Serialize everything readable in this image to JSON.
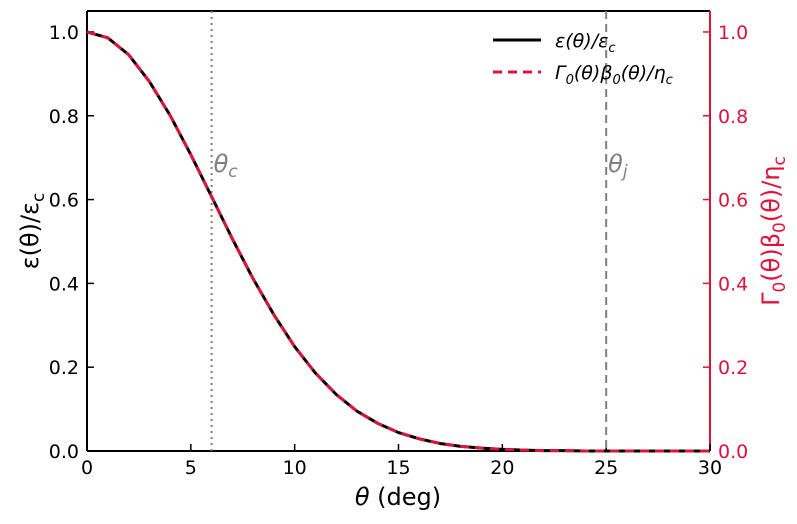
{
  "chart_data": {
    "type": "line",
    "xlabel": "θ (deg)",
    "ylabel_left": "ε(θ)/ε_c",
    "ylabel_right": "Γ0(θ)β0(θ)/η_c",
    "xlim": [
      0,
      30
    ],
    "ylim_left": [
      0,
      1.05
    ],
    "ylim_right": [
      0,
      1.05
    ],
    "x_ticks": [
      "0",
      "5",
      "10",
      "15",
      "20",
      "25",
      "30"
    ],
    "y_ticks_left": [
      "0.0",
      "0.2",
      "0.4",
      "0.6",
      "0.8",
      "1.0"
    ],
    "y_ticks_right": [
      "0.0",
      "0.2",
      "0.4",
      "0.6",
      "0.8",
      "1.0"
    ],
    "grid": false,
    "legend_position": "top-right",
    "series": [
      {
        "name": "ε(θ)/ε_c",
        "style": "solid",
        "color": "#000000",
        "x": [
          0,
          1,
          2,
          3,
          4,
          5,
          6,
          7,
          8,
          9,
          10,
          11,
          12,
          13,
          14,
          15,
          16,
          17,
          18,
          19,
          20,
          21,
          22,
          23,
          24,
          25,
          26,
          27,
          28,
          29,
          30
        ],
        "y": [
          1.0,
          0.986,
          0.946,
          0.882,
          0.801,
          0.707,
          0.607,
          0.506,
          0.411,
          0.325,
          0.249,
          0.186,
          0.135,
          0.095,
          0.066,
          0.044,
          0.029,
          0.018,
          0.011,
          0.007,
          0.004,
          0.002,
          0.001,
          0.001,
          0.0,
          0.0,
          0.0,
          0.0,
          0.0,
          0.0,
          0.0
        ]
      },
      {
        "name": "Γ0(θ)β0(θ)/η_c",
        "style": "dashed",
        "color": "#dc143c",
        "x": [
          0,
          1,
          2,
          3,
          4,
          5,
          6,
          7,
          8,
          9,
          10,
          11,
          12,
          13,
          14,
          15,
          16,
          17,
          18,
          19,
          20,
          21,
          22,
          23,
          24,
          25,
          26,
          27,
          28,
          29,
          30
        ],
        "y": [
          1.0,
          0.986,
          0.946,
          0.882,
          0.801,
          0.707,
          0.607,
          0.506,
          0.411,
          0.325,
          0.249,
          0.186,
          0.135,
          0.095,
          0.066,
          0.044,
          0.029,
          0.018,
          0.011,
          0.007,
          0.004,
          0.002,
          0.001,
          0.001,
          0.0,
          0.0,
          0.0,
          0.0,
          0.0,
          0.0,
          0.0
        ]
      }
    ],
    "vlines": [
      {
        "x": 6,
        "style": "dotted",
        "color": "#808080",
        "label": "θc"
      },
      {
        "x": 25,
        "style": "dashed",
        "color": "#808080",
        "label": "θj"
      }
    ],
    "colors": {
      "right_axis": "#dc143c",
      "annotation": "#808080"
    }
  }
}
